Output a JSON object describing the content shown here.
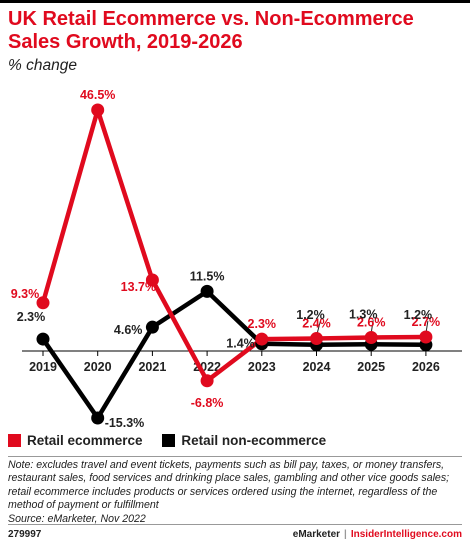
{
  "title": "UK Retail Ecommerce vs. Non-Ecommerce Sales Growth, 2019-2026",
  "subtitle": "% change",
  "legend": {
    "ecommerce": "Retail ecommerce",
    "non_ecommerce": "Retail non-ecommerce"
  },
  "colors": {
    "ecommerce": "#e00a1e",
    "non_ecommerce": "#000000"
  },
  "note": "Note: excludes travel and event tickets, payments such as bill pay, taxes, or money transfers, restaurant sales, food services and drinking place sales, gambling and other vice goods sales; retail ecommerce includes products or services ordered using the internet, regardless of the method of payment or fulfillment",
  "source": "Source: eMarketer, Nov 2022",
  "footer": {
    "id": "279997",
    "brand": "eMarketer",
    "separator": "|",
    "site": "InsiderIntelligence.com"
  },
  "chart_data": {
    "type": "line",
    "categories": [
      "2019",
      "2020",
      "2021",
      "2022",
      "2023",
      "2024",
      "2025",
      "2026"
    ],
    "series": [
      {
        "name": "Retail ecommerce",
        "values": [
          9.3,
          46.5,
          13.7,
          -6.8,
          2.3,
          2.4,
          2.6,
          2.7
        ],
        "labels": [
          "9.3%",
          "46.5%",
          "13.7%",
          "-6.8%",
          "2.3%",
          "2.4%",
          "2.6%",
          "2.7%"
        ]
      },
      {
        "name": "Retail non-ecommerce",
        "values": [
          2.3,
          -15.3,
          4.6,
          11.5,
          1.4,
          1.2,
          1.3,
          1.2
        ],
        "labels": [
          "2.3%",
          "-15.3%",
          "4.6%",
          "11.5%",
          "1.4%",
          "1.2%",
          "1.3%",
          "1.2%"
        ]
      }
    ],
    "ylim": [
      -15.3,
      46.5
    ],
    "grid": false
  }
}
